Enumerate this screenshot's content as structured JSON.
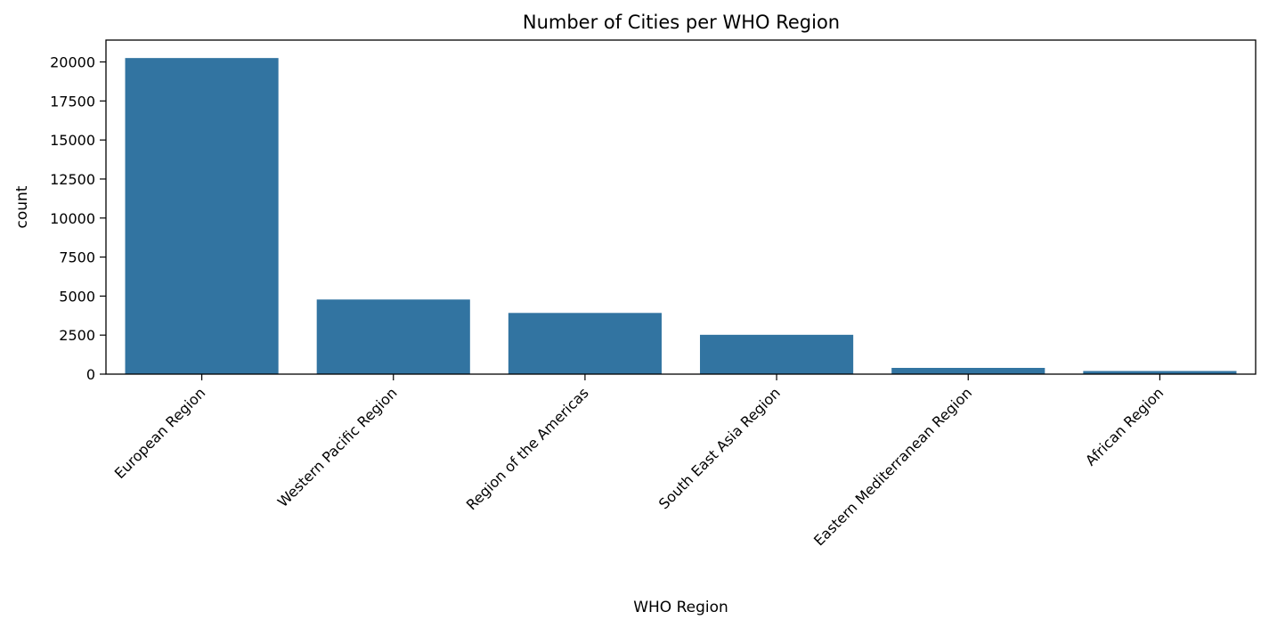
{
  "chart_data": {
    "type": "bar",
    "title": "Number of Cities per WHO Region",
    "xlabel": "WHO Region",
    "ylabel": "count",
    "categories": [
      "European Region",
      "Western Pacific Region",
      "Region of the Americas",
      "South East Asia Region",
      "Eastern Mediterranean Region",
      "African Region"
    ],
    "values": [
      20250,
      4780,
      3920,
      2520,
      400,
      200
    ],
    "ylim": [
      0,
      21400
    ],
    "yticks": [
      0,
      2500,
      5000,
      7500,
      10000,
      12500,
      15000,
      17500,
      20000
    ],
    "bar_color": "#3274a1",
    "grid": false,
    "legend": "none"
  }
}
